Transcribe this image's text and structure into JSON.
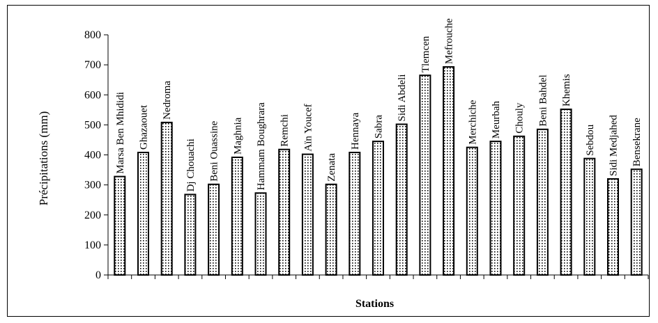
{
  "chart_data": {
    "type": "bar",
    "categories": [
      "Marsa Ben Mhididi",
      "Ghazaouet",
      "Nedroma",
      "Dj Chouachi",
      "Beni Ouassine",
      "Maghnia",
      "Hammam Boughrara",
      "Remchi",
      "Aïn Youcef",
      "Zenata",
      "Hennaya",
      "Sabra",
      "Sidi Abdeli",
      "Tlemcen",
      "Mefrouche",
      "Merchiche",
      "Meurbah",
      "Chouly",
      "Beni Bahdel",
      "Khemis",
      "Sebdou",
      "Sidi Medjahed",
      "Bensekrane"
    ],
    "values": [
      328,
      408,
      508,
      268,
      302,
      392,
      273,
      418,
      402,
      302,
      408,
      445,
      502,
      665,
      693,
      425,
      445,
      462,
      485,
      552,
      388,
      320,
      352
    ],
    "title": "",
    "xlabel": "Stations",
    "ylabel": "Précipitations (mm)",
    "ylim": [
      0,
      800
    ],
    "yticks": [
      0,
      100,
      200,
      300,
      400,
      500,
      600,
      700,
      800
    ],
    "grid": false,
    "bar_fill": "dotted",
    "bar_color": "#000000"
  }
}
